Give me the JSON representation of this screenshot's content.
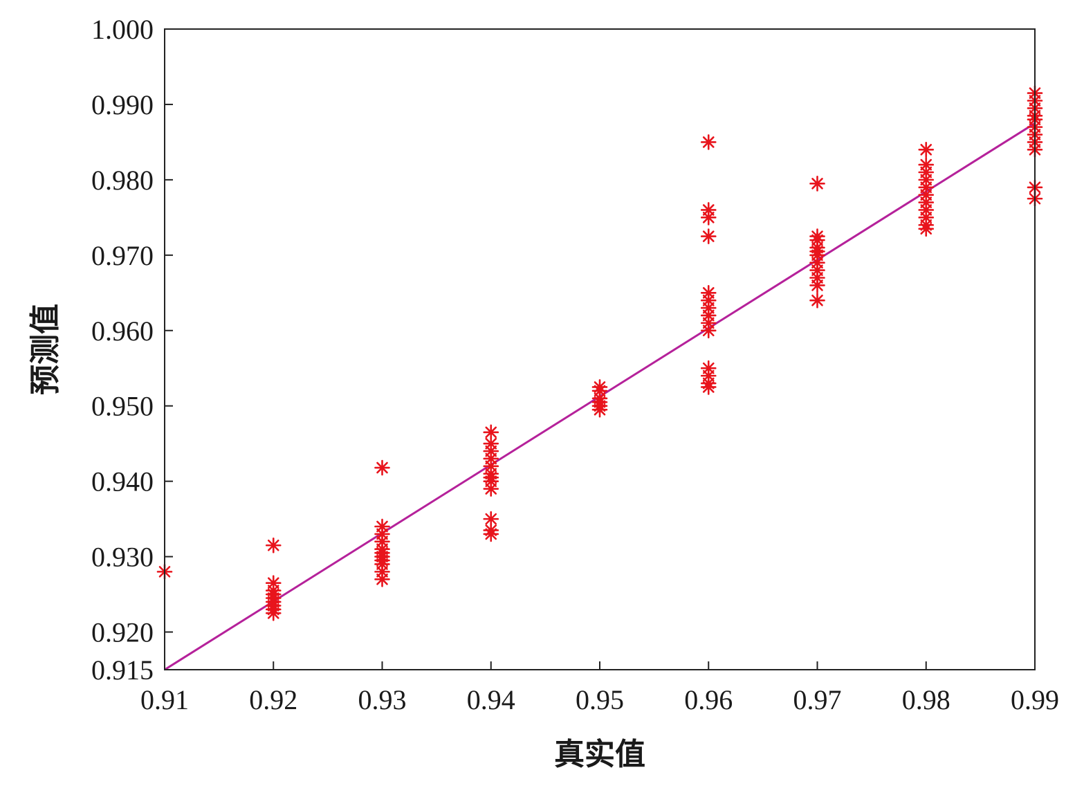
{
  "chart_data": {
    "type": "scatter",
    "title": "",
    "xlabel": "真实值",
    "ylabel": "预测值",
    "xlim": [
      0.91,
      0.99
    ],
    "ylim": [
      0.915,
      1.0
    ],
    "x_ticks": [
      "0.91",
      "0.92",
      "0.93",
      "0.94",
      "0.95",
      "0.96",
      "0.97",
      "0.98",
      "0.99"
    ],
    "y_ticks": [
      "0.915",
      "0.920",
      "0.930",
      "0.940",
      "0.950",
      "0.960",
      "0.970",
      "0.980",
      "0.990",
      "1.000"
    ],
    "grid": false,
    "legend": "none",
    "marker": "asterisk",
    "marker_color": "#e8141c",
    "line_color": "#b5219a",
    "fit_line": {
      "x": [
        0.91,
        0.99
      ],
      "y": [
        0.915,
        0.9875
      ]
    },
    "series": [
      {
        "points": [
          [
            0.91,
            0.928
          ],
          [
            0.92,
            0.9315
          ],
          [
            0.92,
            0.9265
          ],
          [
            0.92,
            0.9255
          ],
          [
            0.92,
            0.925
          ],
          [
            0.92,
            0.9245
          ],
          [
            0.92,
            0.924
          ],
          [
            0.92,
            0.9235
          ],
          [
            0.92,
            0.923
          ],
          [
            0.92,
            0.9225
          ],
          [
            0.93,
            0.9418
          ],
          [
            0.93,
            0.934
          ],
          [
            0.93,
            0.933
          ],
          [
            0.93,
            0.932
          ],
          [
            0.93,
            0.931
          ],
          [
            0.93,
            0.9305
          ],
          [
            0.93,
            0.93
          ],
          [
            0.93,
            0.9295
          ],
          [
            0.93,
            0.929
          ],
          [
            0.93,
            0.928
          ],
          [
            0.93,
            0.927
          ],
          [
            0.94,
            0.9465
          ],
          [
            0.94,
            0.945
          ],
          [
            0.94,
            0.944
          ],
          [
            0.94,
            0.943
          ],
          [
            0.94,
            0.942
          ],
          [
            0.94,
            0.941
          ],
          [
            0.94,
            0.9405
          ],
          [
            0.94,
            0.94
          ],
          [
            0.94,
            0.939
          ],
          [
            0.94,
            0.935
          ],
          [
            0.94,
            0.9335
          ],
          [
            0.94,
            0.933
          ],
          [
            0.95,
            0.9525
          ],
          [
            0.95,
            0.952
          ],
          [
            0.95,
            0.951
          ],
          [
            0.95,
            0.9505
          ],
          [
            0.95,
            0.95
          ],
          [
            0.95,
            0.9495
          ],
          [
            0.96,
            0.985
          ],
          [
            0.96,
            0.976
          ],
          [
            0.96,
            0.975
          ],
          [
            0.96,
            0.9725
          ],
          [
            0.96,
            0.965
          ],
          [
            0.96,
            0.964
          ],
          [
            0.96,
            0.963
          ],
          [
            0.96,
            0.962
          ],
          [
            0.96,
            0.961
          ],
          [
            0.96,
            0.96
          ],
          [
            0.96,
            0.955
          ],
          [
            0.96,
            0.954
          ],
          [
            0.96,
            0.953
          ],
          [
            0.96,
            0.9525
          ],
          [
            0.97,
            0.9795
          ],
          [
            0.97,
            0.9725
          ],
          [
            0.97,
            0.972
          ],
          [
            0.97,
            0.971
          ],
          [
            0.97,
            0.9705
          ],
          [
            0.97,
            0.97
          ],
          [
            0.97,
            0.969
          ],
          [
            0.97,
            0.968
          ],
          [
            0.97,
            0.967
          ],
          [
            0.97,
            0.966
          ],
          [
            0.97,
            0.964
          ],
          [
            0.98,
            0.984
          ],
          [
            0.98,
            0.982
          ],
          [
            0.98,
            0.981
          ],
          [
            0.98,
            0.98
          ],
          [
            0.98,
            0.979
          ],
          [
            0.98,
            0.978
          ],
          [
            0.98,
            0.977
          ],
          [
            0.98,
            0.976
          ],
          [
            0.98,
            0.975
          ],
          [
            0.98,
            0.974
          ],
          [
            0.98,
            0.9735
          ],
          [
            0.99,
            0.9915
          ],
          [
            0.99,
            0.9905
          ],
          [
            0.99,
            0.9895
          ],
          [
            0.99,
            0.9885
          ],
          [
            0.99,
            0.988
          ],
          [
            0.99,
            0.987
          ],
          [
            0.99,
            0.986
          ],
          [
            0.99,
            0.985
          ],
          [
            0.99,
            0.984
          ],
          [
            0.99,
            0.979
          ],
          [
            0.99,
            0.9775
          ]
        ]
      }
    ]
  }
}
